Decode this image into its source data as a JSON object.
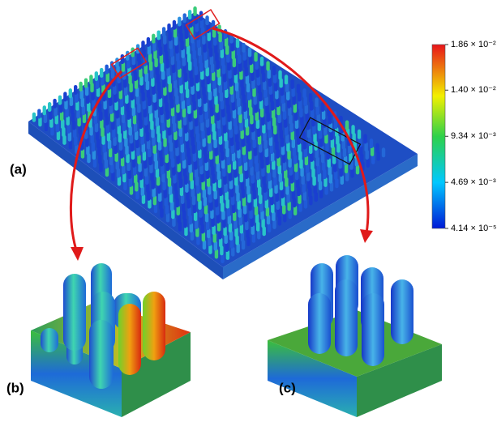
{
  "panels": {
    "a": "(a)",
    "b": "(b)",
    "c": "(c)"
  },
  "colorbar": {
    "ticks": [
      {
        "value": 0.0186,
        "label": "1.86 × 10⁻²"
      },
      {
        "value": 0.014,
        "label": "1.40 × 10⁻²"
      },
      {
        "value": 0.00934,
        "label": "9.34 × 10⁻³"
      },
      {
        "value": 0.00469,
        "label": "4.69 × 10⁻³"
      },
      {
        "value": 4.14e-05,
        "label": "4.14 × 10⁻⁵"
      }
    ]
  }
}
